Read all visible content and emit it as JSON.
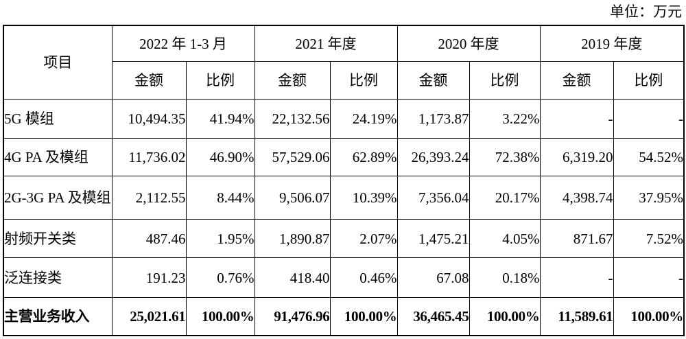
{
  "unit": "单位：万元",
  "header": {
    "item": "项目",
    "years": [
      "2022 年 1-3 月",
      "2021 年度",
      "2020 年度",
      "2019 年度"
    ],
    "amount": "金额",
    "ratio": "比例"
  },
  "rows": [
    {
      "label": "5G 模组",
      "cells": [
        "10,494.35",
        "41.94%",
        "22,132.56",
        "24.19%",
        "1,173.87",
        "3.22%",
        "-",
        "-"
      ]
    },
    {
      "label": "4G PA 及模组",
      "cells": [
        "11,736.02",
        "46.90%",
        "57,529.06",
        "62.89%",
        "26,393.24",
        "72.38%",
        "6,319.20",
        "54.52%"
      ]
    },
    {
      "label": "2G-3G PA 及模组",
      "cells": [
        "2,112.55",
        "8.44%",
        "9,506.07",
        "10.39%",
        "7,356.04",
        "20.17%",
        "4,398.74",
        "37.95%"
      ]
    },
    {
      "label": "射频开关类",
      "cells": [
        "487.46",
        "1.95%",
        "1,890.87",
        "2.07%",
        "1,475.21",
        "4.05%",
        "871.67",
        "7.52%"
      ]
    },
    {
      "label": "泛连接类",
      "cells": [
        "191.23",
        "0.76%",
        "418.40",
        "0.46%",
        "67.08",
        "0.18%",
        "-",
        "-"
      ]
    },
    {
      "label": "主营业务收入",
      "cells": [
        "25,021.61",
        "100.00%",
        "91,476.96",
        "100.00%",
        "36,465.45",
        "100.00%",
        "11,589.61",
        "100.00%"
      ]
    }
  ]
}
